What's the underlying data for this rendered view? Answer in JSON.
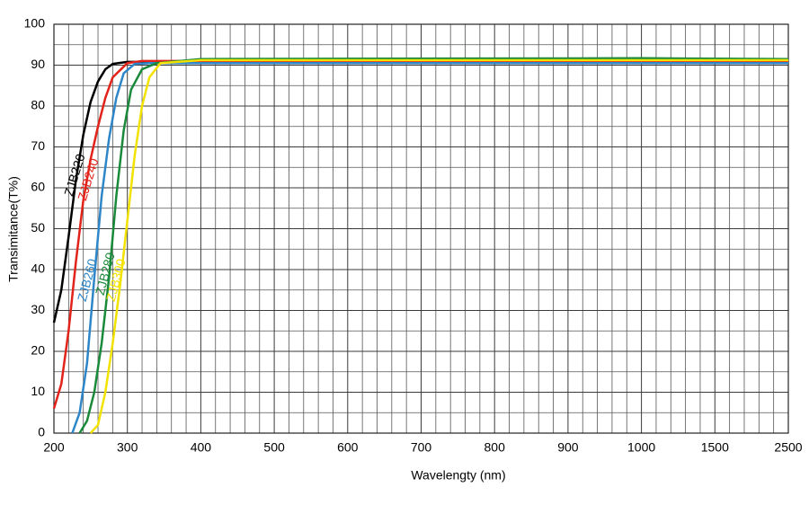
{
  "chart_data": {
    "type": "line",
    "xlabel": "Wavelengty (nm)",
    "ylabel": "Transimitance(T%)",
    "xlim": [
      200,
      2500
    ],
    "ylim": [
      0,
      100
    ],
    "xticks": [
      200,
      300,
      400,
      500,
      600,
      700,
      800,
      900,
      1000,
      1500,
      2500
    ],
    "yticks": [
      0,
      10,
      20,
      30,
      40,
      50,
      60,
      70,
      80,
      90,
      100
    ],
    "minor_xticks": [
      220,
      240,
      260,
      280,
      320,
      340,
      360,
      380,
      420,
      440,
      460,
      480,
      520,
      540,
      560,
      580,
      620,
      640,
      660,
      680,
      720,
      740,
      760,
      780,
      820,
      840,
      860,
      880,
      920,
      940,
      960,
      980,
      1100,
      1200,
      1300,
      1400,
      1700,
      1900,
      2100,
      2300
    ],
    "minor_yticks": [
      5,
      15,
      25,
      35,
      45,
      55,
      65,
      75,
      85,
      95
    ],
    "grid": true,
    "series": [
      {
        "name": "ZJB220",
        "color": "#000000",
        "x": [
          200,
          210,
          220,
          230,
          240,
          250,
          260,
          270,
          280,
          300,
          320,
          400,
          1000,
          2500
        ],
        "values": [
          27,
          35,
          48,
          62,
          73,
          81,
          86,
          89,
          90.3,
          90.8,
          90.8,
          90.8,
          91,
          91
        ]
      },
      {
        "name": "ZJB240",
        "color": "#e2231a",
        "x": [
          200,
          210,
          220,
          230,
          240,
          250,
          260,
          270,
          280,
          300,
          320,
          400,
          2500
        ],
        "values": [
          6,
          12,
          25,
          42,
          57,
          67,
          75,
          82,
          87,
          90.5,
          91,
          91,
          91
        ]
      },
      {
        "name": "ZJB260",
        "color": "#2e86c8",
        "x": [
          225,
          235,
          245,
          255,
          265,
          275,
          285,
          295,
          310,
          330,
          400,
          2500
        ],
        "values": [
          0,
          5,
          17,
          38,
          58,
          72,
          82,
          88,
          90.3,
          90.5,
          90.5,
          90.5
        ]
      },
      {
        "name": "ZJB280",
        "color": "#1a8a3a",
        "x": [
          235,
          245,
          255,
          265,
          275,
          285,
          295,
          305,
          320,
          340,
          400,
          1000,
          2500
        ],
        "values": [
          0,
          3,
          10,
          22,
          38,
          58,
          74,
          84,
          89,
          90.5,
          91.5,
          91.7,
          91.5
        ]
      },
      {
        "name": "ZJB300",
        "color": "#f2e200",
        "x": [
          250,
          260,
          270,
          280,
          290,
          300,
          310,
          320,
          330,
          345,
          400,
          2500
        ],
        "values": [
          0,
          2,
          10,
          22,
          36,
          52,
          68,
          80,
          87,
          90.5,
          91.2,
          91.2
        ]
      }
    ]
  }
}
